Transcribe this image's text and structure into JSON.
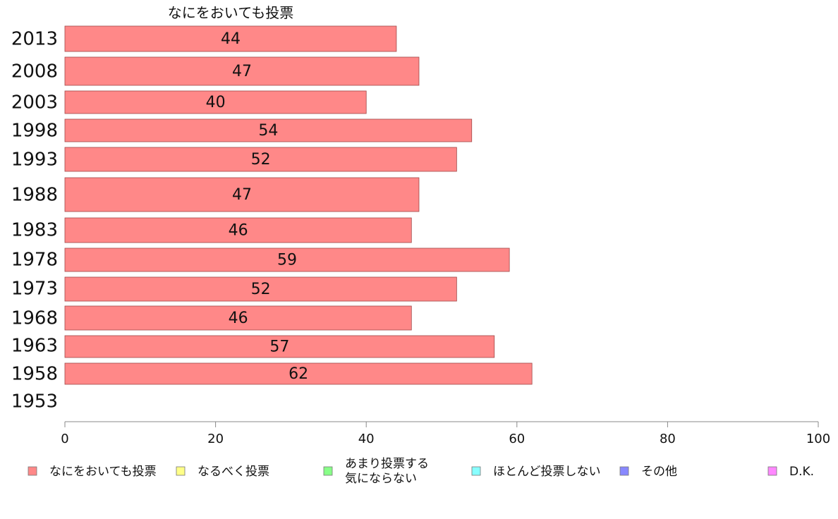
{
  "chart_data": {
    "type": "bar",
    "orientation": "horizontal",
    "title": "なにをおいても投票",
    "categories": [
      "2013",
      "2008",
      "2003",
      "1998",
      "1993",
      "1988",
      "1983",
      "1978",
      "1973",
      "1968",
      "1963",
      "1958",
      "1953"
    ],
    "series": [
      {
        "name": "なにをおいても投票",
        "values": [
          44,
          47,
          40,
          54,
          52,
          47,
          46,
          59,
          52,
          46,
          57,
          62,
          null
        ]
      }
    ],
    "bar_labels": [
      "44",
      "47",
      "40",
      "54",
      "52",
      "47",
      "46",
      "59",
      "52",
      "46",
      "57",
      "62",
      ""
    ],
    "xlim": [
      0,
      100
    ],
    "xticks": [
      0,
      20,
      40,
      60,
      80,
      100
    ],
    "grid": false,
    "legend_position": "bottom",
    "legend": [
      {
        "label": "なにをおいても投票",
        "color": "#ff8888"
      },
      {
        "label": "なるべく投票",
        "color": "#ffff88"
      },
      {
        "label": "あまり投票する気にならない",
        "lines": [
          "あまり投票する",
          "気にならない"
        ],
        "color": "#88ff88"
      },
      {
        "label": "ほとんど投票しない",
        "color": "#88ffff"
      },
      {
        "label": "その他",
        "color": "#8888ff"
      },
      {
        "label": "D.K.",
        "color": "#ff88ff"
      }
    ],
    "bar_color": "#ff8888"
  }
}
